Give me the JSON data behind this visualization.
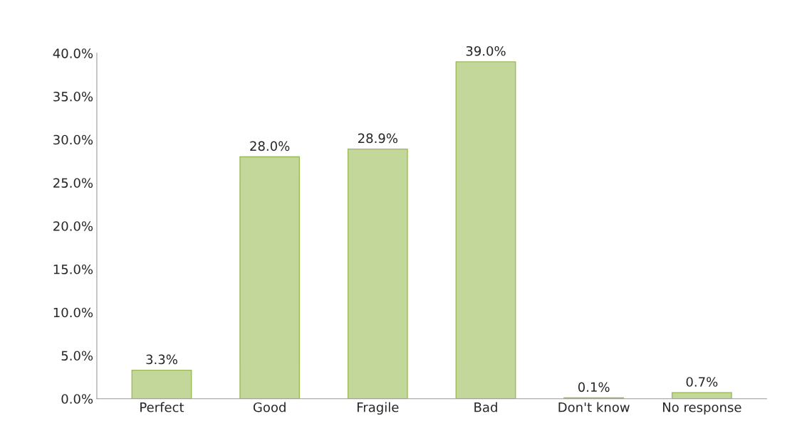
{
  "chart_data": {
    "type": "bar",
    "categories": [
      "Perfect",
      "Good",
      "Fragile",
      "Bad",
      "Don't know",
      "No response"
    ],
    "values": [
      3.3,
      28.0,
      28.9,
      39.0,
      0.1,
      0.7
    ],
    "value_labels": [
      "3.3%",
      "28.0%",
      "28.9%",
      "39.0%",
      "0.1%",
      "0.7%"
    ],
    "color": "#c4d79b",
    "ylim": [
      0,
      40
    ],
    "yticks": [
      {
        "value": 0,
        "label": "0.0%"
      },
      {
        "value": 5,
        "label": "5.0%"
      },
      {
        "value": 10,
        "label": "10.0%"
      },
      {
        "value": 15,
        "label": "15.0%"
      },
      {
        "value": 20,
        "label": "20.0%"
      },
      {
        "value": 25,
        "label": "25.0%"
      },
      {
        "value": 30,
        "label": "30.0%"
      },
      {
        "value": 35,
        "label": "35.0%"
      },
      {
        "value": 40,
        "label": "40.0%"
      }
    ],
    "grid": false,
    "legend": false
  }
}
